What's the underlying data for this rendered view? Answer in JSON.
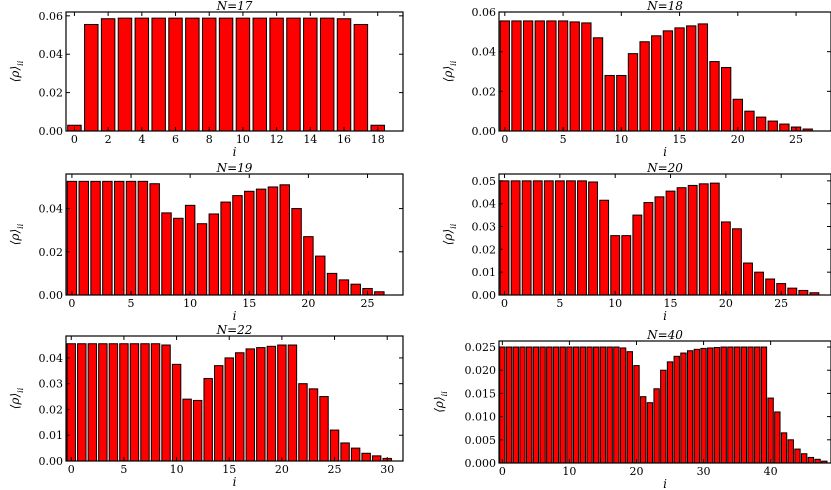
{
  "chart_data": [
    {
      "type": "bar",
      "title": "N=17",
      "xlabel": "i",
      "ylabel": "⟨ρ⟩",
      "ylabel_sub": "ii",
      "xlim": [
        -0.5,
        19.5
      ],
      "ylim": [
        0,
        0.062
      ],
      "xticks": [
        0,
        2,
        4,
        6,
        8,
        10,
        12,
        14,
        16,
        18
      ],
      "yticks": [
        0.0,
        0.02,
        0.04,
        0.06
      ],
      "ytick_labels": [
        "0.00",
        "0.02",
        "0.04",
        "0.06"
      ],
      "x": [
        0,
        1,
        2,
        3,
        4,
        5,
        6,
        7,
        8,
        9,
        10,
        11,
        12,
        13,
        14,
        15,
        16,
        17,
        18
      ],
      "values": [
        0.003,
        0.0555,
        0.0585,
        0.0588,
        0.0588,
        0.0588,
        0.0588,
        0.0588,
        0.0588,
        0.0588,
        0.0588,
        0.0588,
        0.0588,
        0.0588,
        0.0588,
        0.0588,
        0.0585,
        0.0555,
        0.003
      ]
    },
    {
      "type": "bar",
      "title": "N=18",
      "xlabel": "i",
      "ylabel": "⟨ρ⟩",
      "ylabel_sub": "ii",
      "xlim": [
        -0.5,
        28
      ],
      "ylim": [
        0,
        0.06
      ],
      "xticks": [
        0,
        5,
        10,
        15,
        20,
        25
      ],
      "yticks": [
        0.0,
        0.02,
        0.04,
        0.06
      ],
      "ytick_labels": [
        "0.00",
        "0.02",
        "0.04",
        "0.06"
      ],
      "x": [
        0,
        1,
        2,
        3,
        4,
        5,
        6,
        7,
        8,
        9,
        10,
        11,
        12,
        13,
        14,
        15,
        16,
        17,
        18,
        19,
        20,
        21,
        22,
        23,
        24,
        25,
        26
      ],
      "values": [
        0.0555,
        0.0555,
        0.0555,
        0.0555,
        0.0555,
        0.0555,
        0.055,
        0.0545,
        0.047,
        0.028,
        0.028,
        0.039,
        0.045,
        0.048,
        0.0505,
        0.052,
        0.053,
        0.054,
        0.035,
        0.032,
        0.016,
        0.01,
        0.007,
        0.005,
        0.0035,
        0.002,
        0.001
      ]
    },
    {
      "type": "bar",
      "title": "N=19",
      "xlabel": "i",
      "ylabel": "⟨ρ⟩",
      "ylabel_sub": "ii",
      "xlim": [
        -0.5,
        28
      ],
      "ylim": [
        0,
        0.056
      ],
      "xticks": [
        0,
        5,
        10,
        15,
        20,
        25
      ],
      "yticks": [
        0.0,
        0.02,
        0.04
      ],
      "ytick_labels": [
        "0.00",
        "0.02",
        "0.04"
      ],
      "x": [
        0,
        1,
        2,
        3,
        4,
        5,
        6,
        7,
        8,
        9,
        10,
        11,
        12,
        13,
        14,
        15,
        16,
        17,
        18,
        19,
        20,
        21,
        22,
        23,
        24,
        25,
        26
      ],
      "values": [
        0.0526,
        0.0526,
        0.0526,
        0.0526,
        0.0526,
        0.0526,
        0.0526,
        0.0515,
        0.038,
        0.0355,
        0.0415,
        0.033,
        0.0375,
        0.043,
        0.046,
        0.048,
        0.049,
        0.05,
        0.051,
        0.04,
        0.027,
        0.018,
        0.01,
        0.007,
        0.005,
        0.003,
        0.0015
      ]
    },
    {
      "type": "bar",
      "title": "N=20",
      "xlabel": "i",
      "ylabel": "⟨ρ⟩",
      "ylabel_sub": "ii",
      "xlim": [
        -0.5,
        29.5
      ],
      "ylim": [
        0,
        0.053
      ],
      "xticks": [
        0,
        5,
        10,
        15,
        20,
        25
      ],
      "yticks": [
        0.0,
        0.01,
        0.02,
        0.03,
        0.04,
        0.05
      ],
      "ytick_labels": [
        "0.00",
        "0.01",
        "0.02",
        "0.03",
        "0.04",
        "0.05"
      ],
      "x": [
        0,
        1,
        2,
        3,
        4,
        5,
        6,
        7,
        8,
        9,
        10,
        11,
        12,
        13,
        14,
        15,
        16,
        17,
        18,
        19,
        20,
        21,
        22,
        23,
        24,
        25,
        26,
        27,
        28
      ],
      "values": [
        0.05,
        0.05,
        0.05,
        0.05,
        0.05,
        0.05,
        0.05,
        0.05,
        0.0495,
        0.0415,
        0.026,
        0.026,
        0.035,
        0.0405,
        0.043,
        0.0455,
        0.047,
        0.048,
        0.0487,
        0.049,
        0.032,
        0.029,
        0.014,
        0.01,
        0.007,
        0.005,
        0.003,
        0.002,
        0.001
      ]
    },
    {
      "type": "bar",
      "title": "N=22",
      "xlabel": "i",
      "ylabel": "⟨ρ⟩",
      "ylabel_sub": "ii",
      "xlim": [
        -0.5,
        31.5
      ],
      "ylim": [
        0,
        0.0485
      ],
      "xticks": [
        0,
        5,
        10,
        15,
        20,
        25,
        30
      ],
      "yticks": [
        0.0,
        0.01,
        0.02,
        0.03,
        0.04
      ],
      "ytick_labels": [
        "0.00",
        "0.01",
        "0.02",
        "0.03",
        "0.04"
      ],
      "x": [
        0,
        1,
        2,
        3,
        4,
        5,
        6,
        7,
        8,
        9,
        10,
        11,
        12,
        13,
        14,
        15,
        16,
        17,
        18,
        19,
        20,
        21,
        22,
        23,
        24,
        25,
        26,
        27,
        28,
        29,
        30
      ],
      "values": [
        0.0455,
        0.0455,
        0.0455,
        0.0455,
        0.0455,
        0.0455,
        0.0455,
        0.0455,
        0.0455,
        0.045,
        0.0375,
        0.024,
        0.0235,
        0.032,
        0.037,
        0.04,
        0.042,
        0.0435,
        0.044,
        0.0445,
        0.045,
        0.045,
        0.03,
        0.028,
        0.025,
        0.012,
        0.007,
        0.005,
        0.003,
        0.002,
        0.001
      ]
    },
    {
      "type": "bar",
      "title": "N=40",
      "xlabel": "i",
      "ylabel": "⟨ρ⟩",
      "ylabel_sub": "ii",
      "xlim": [
        -0.5,
        49
      ],
      "ylim": [
        0,
        0.0263
      ],
      "xticks": [
        0,
        10,
        20,
        30,
        40
      ],
      "yticks": [
        0.0,
        0.005,
        0.01,
        0.015,
        0.02,
        0.025
      ],
      "ytick_labels": [
        "0.000",
        "0.005",
        "0.010",
        "0.015",
        "0.020",
        "0.025"
      ],
      "x": [
        0,
        1,
        2,
        3,
        4,
        5,
        6,
        7,
        8,
        9,
        10,
        11,
        12,
        13,
        14,
        15,
        16,
        17,
        18,
        19,
        20,
        21,
        22,
        23,
        24,
        25,
        26,
        27,
        28,
        29,
        30,
        31,
        32,
        33,
        34,
        35,
        36,
        37,
        38,
        39,
        40,
        41,
        42,
        43,
        44,
        45,
        46,
        47,
        48
      ],
      "values": [
        0.025,
        0.025,
        0.025,
        0.025,
        0.025,
        0.025,
        0.025,
        0.025,
        0.025,
        0.025,
        0.025,
        0.025,
        0.025,
        0.025,
        0.025,
        0.025,
        0.025,
        0.025,
        0.0248,
        0.024,
        0.021,
        0.0143,
        0.013,
        0.016,
        0.02,
        0.0218,
        0.023,
        0.0237,
        0.0242,
        0.0245,
        0.0247,
        0.0248,
        0.0249,
        0.025,
        0.025,
        0.025,
        0.025,
        0.025,
        0.025,
        0.025,
        0.014,
        0.011,
        0.0065,
        0.005,
        0.003,
        0.002,
        0.0012,
        0.0008,
        0.0004
      ]
    }
  ]
}
